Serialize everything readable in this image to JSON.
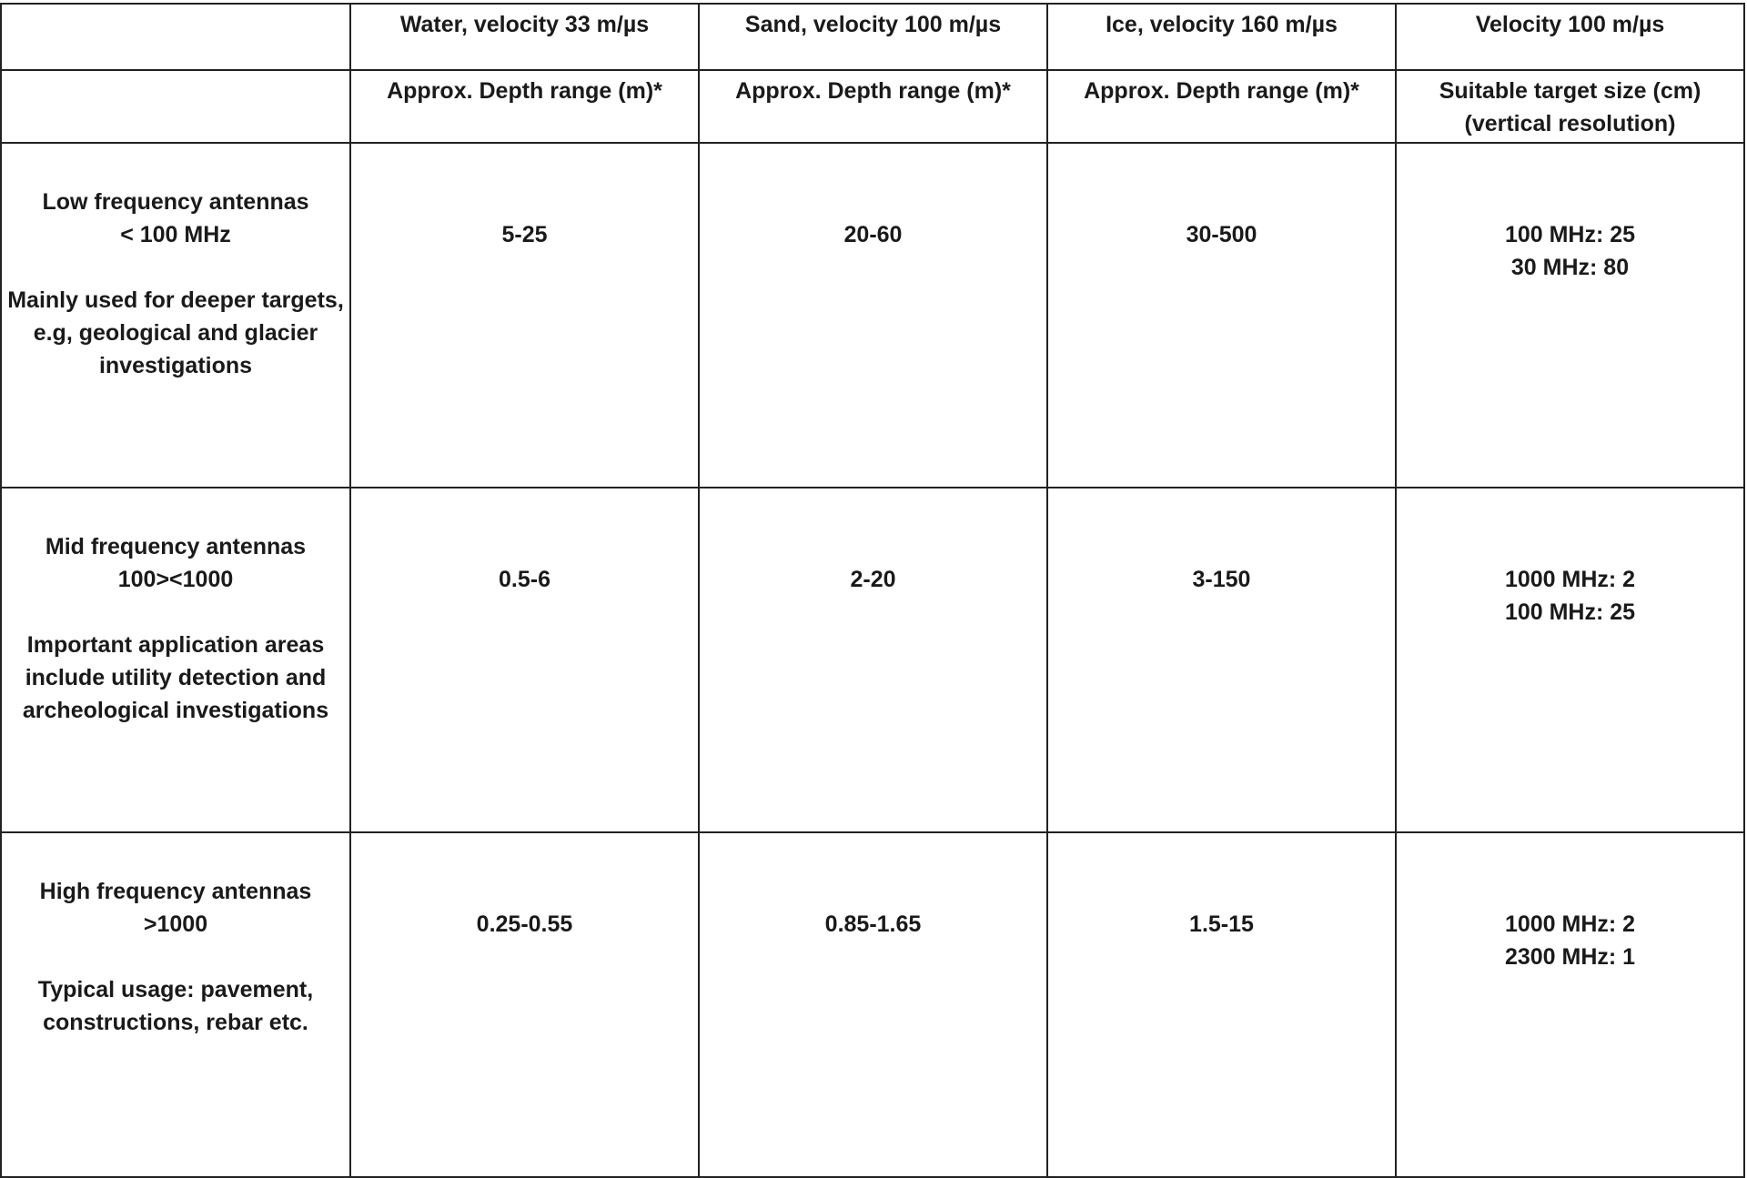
{
  "table": {
    "header": [
      "Water, velocity 33 m/µs",
      "Sand, velocity 100 m/µs",
      "Ice, velocity 160 m/µs",
      "Velocity 100 m/µs"
    ],
    "subheader": [
      [
        "Approx. Depth range (m)*"
      ],
      [
        "Approx. Depth range (m)*"
      ],
      [
        "Approx. Depth range (m)*"
      ],
      [
        "Suitable target size (cm)",
        "(vertical resolution)"
      ]
    ],
    "rows": [
      {
        "title": "Low frequency antennas",
        "range": "< 100 MHz",
        "description": "Mainly used for deeper targets, e.g, geological and glacier investigations",
        "cells": [
          "5-25",
          "20-60",
          "30-500"
        ],
        "target": [
          "100 MHz: 25",
          "30 MHz: 80"
        ]
      },
      {
        "title": "Mid frequency antennas",
        "range": "100><1000",
        "description": "Important application areas include utility detection and archeological investigations",
        "cells": [
          "0.5-6",
          "2-20",
          "3-150"
        ],
        "target": [
          "1000 MHz: 2",
          "100 MHz: 25"
        ]
      },
      {
        "title": "High frequency antennas",
        "range": ">1000",
        "description": "Typical usage: pavement, constructions, rebar etc.",
        "cells": [
          "0.25-0.55",
          "0.85-1.65",
          "1.5-15"
        ],
        "target": [
          "1000 MHz: 2",
          "2300 MHz: 1"
        ]
      }
    ]
  }
}
